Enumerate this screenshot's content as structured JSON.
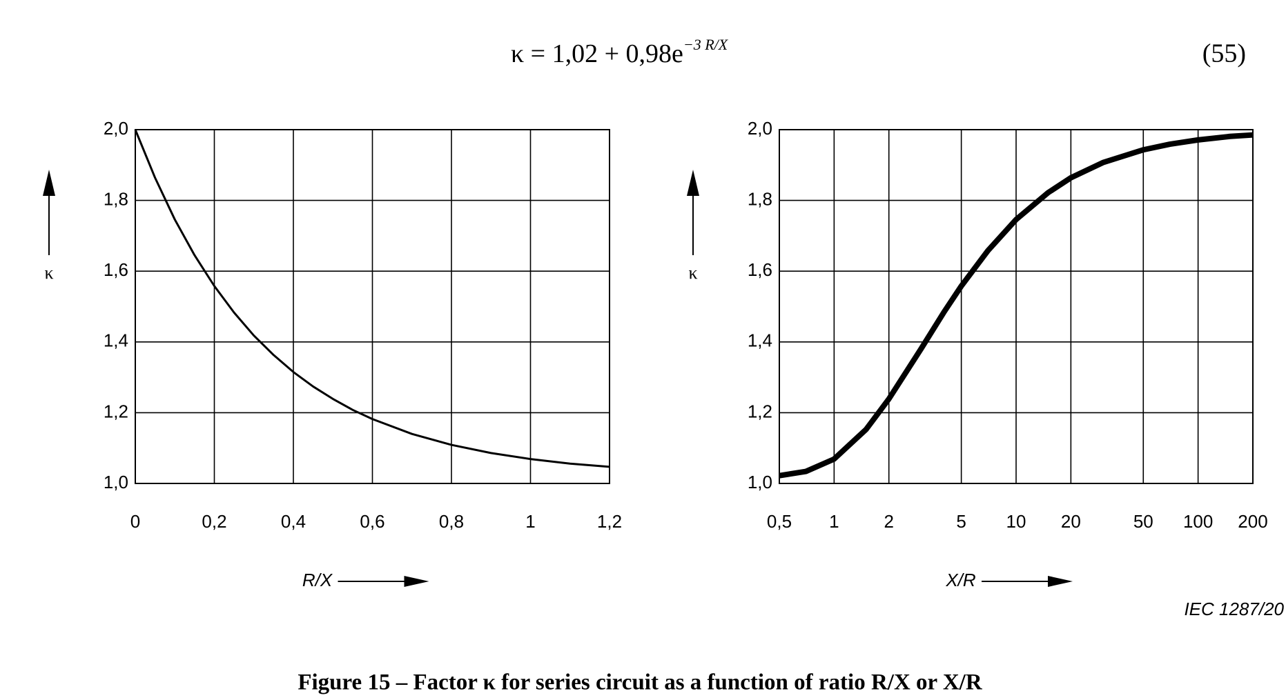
{
  "formula": {
    "base": "κ = 1,02 + 0,98e",
    "exponent": "−3 R/X"
  },
  "equation_number": "(55)",
  "source": "IEC 1287/20",
  "caption": "Figure 15 – Factor κ for series circuit as a function of ratio R/X or X/R",
  "chart_data": [
    {
      "type": "line",
      "xlabel": "R/X",
      "ylabel": "κ",
      "color": "#000000",
      "grid": true,
      "xscale": "linear",
      "x": [
        0,
        0.05,
        0.1,
        0.15,
        0.2,
        0.25,
        0.3,
        0.35,
        0.4,
        0.45,
        0.5,
        0.55,
        0.6,
        0.7,
        0.8,
        0.9,
        1.0,
        1.1,
        1.2
      ],
      "values": [
        2.0,
        1.864,
        1.746,
        1.645,
        1.558,
        1.483,
        1.418,
        1.363,
        1.315,
        1.274,
        1.239,
        1.208,
        1.182,
        1.14,
        1.109,
        1.086,
        1.069,
        1.056,
        1.047
      ],
      "xlim": [
        0,
        1.2
      ],
      "xticks": [
        0,
        {
          "value": 0.2,
          "label": "0,2"
        },
        {
          "value": 0.4,
          "label": "0,4"
        },
        {
          "value": 0.6,
          "label": "0,6"
        },
        {
          "value": 0.8,
          "label": "0,8"
        },
        1,
        {
          "value": 1.2,
          "label": "1,2"
        }
      ],
      "ylim": [
        1,
        2
      ],
      "yticks": [
        {
          "value": 1.0,
          "label": "1,0"
        },
        {
          "value": 1.2,
          "label": "1,2"
        },
        {
          "value": 1.4,
          "label": "1,4"
        },
        {
          "value": 1.6,
          "label": "1,6"
        },
        {
          "value": 1.8,
          "label": "1,8"
        },
        {
          "value": 2.0,
          "label": "2,0"
        }
      ]
    },
    {
      "type": "line",
      "xlabel": "X/R",
      "ylabel": "κ",
      "color": "#000000",
      "grid": true,
      "xscale": "log",
      "x": [
        0.5,
        0.7,
        1,
        1.5,
        2,
        3,
        4,
        5,
        7,
        10,
        15,
        20,
        30,
        50,
        70,
        100,
        150,
        200
      ],
      "values": [
        1.022,
        1.034,
        1.069,
        1.153,
        1.239,
        1.38,
        1.483,
        1.558,
        1.658,
        1.746,
        1.822,
        1.864,
        1.907,
        1.943,
        1.959,
        1.971,
        1.981,
        1.985
      ],
      "xlim": [
        0.5,
        200
      ],
      "xticks": [
        {
          "value": 0.5,
          "label": "0,5"
        },
        1,
        2,
        5,
        10,
        20,
        50,
        100,
        200
      ],
      "ylim": [
        1,
        2
      ],
      "yticks": [
        {
          "value": 1.0,
          "label": "1,0"
        },
        {
          "value": 1.2,
          "label": "1,2"
        },
        {
          "value": 1.4,
          "label": "1,4"
        },
        {
          "value": 1.6,
          "label": "1,6"
        },
        {
          "value": 1.8,
          "label": "1,8"
        },
        {
          "value": 2.0,
          "label": "2,0"
        }
      ]
    }
  ]
}
